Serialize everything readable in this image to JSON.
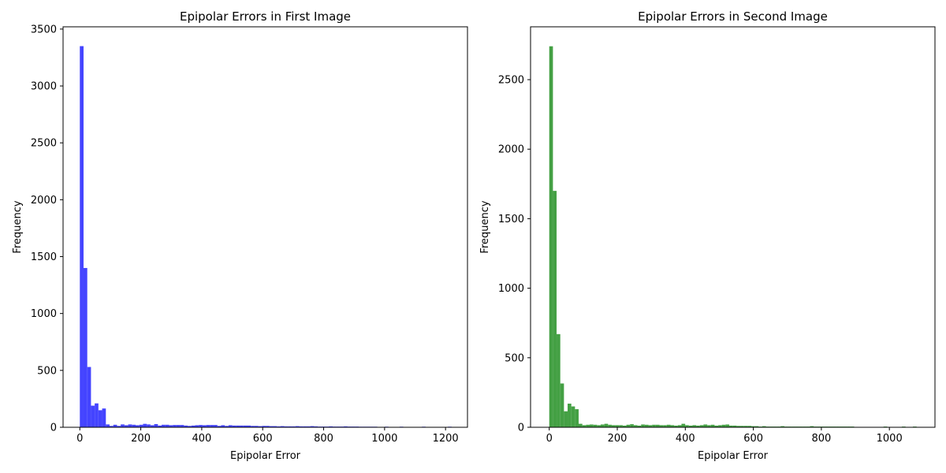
{
  "chart_data": [
    {
      "type": "bar",
      "title": "Epipolar Errors in First Image",
      "xlabel": "Epipolar Error",
      "ylabel": "Frequency",
      "xlim": [
        -55,
        1272
      ],
      "ylim": [
        0,
        3520
      ],
      "xticks": [
        0,
        200,
        400,
        600,
        800,
        1000,
        1200
      ],
      "xtick_labels": [
        "0",
        "200",
        "400",
        "600",
        "800",
        "1000",
        "1200"
      ],
      "yticks": [
        0,
        500,
        1000,
        1500,
        2000,
        2500,
        3000,
        3500
      ],
      "ytick_labels": [
        "0",
        "500",
        "1000",
        "1500",
        "2000",
        "2500",
        "3000",
        "3500"
      ],
      "color": "#4444ff",
      "bin_start": 0,
      "bin_width": 12.2,
      "values": [
        3350,
        1400,
        530,
        190,
        210,
        150,
        165,
        25,
        12,
        22,
        12,
        25,
        18,
        25,
        22,
        18,
        22,
        30,
        25,
        18,
        28,
        15,
        22,
        22,
        18,
        20,
        20,
        20,
        15,
        12,
        15,
        18,
        20,
        18,
        20,
        20,
        20,
        12,
        18,
        12,
        18,
        15,
        15,
        15,
        15,
        15,
        12,
        12,
        10,
        12,
        12,
        10,
        10,
        8,
        10,
        8,
        8,
        8,
        10,
        8,
        8,
        8,
        10,
        8,
        6,
        6,
        6,
        8,
        6,
        6,
        6,
        8,
        6,
        6,
        6,
        5,
        5,
        5,
        5,
        5,
        0,
        0,
        5,
        0,
        0,
        0,
        5,
        0,
        0,
        0,
        0,
        0,
        5,
        0,
        0,
        0,
        0,
        0,
        0,
        5
      ]
    },
    {
      "type": "bar",
      "title": "Epipolar Errors in Second Image",
      "xlabel": "Epipolar Error",
      "ylabel": "Frequency",
      "xlim": [
        -55,
        1134
      ],
      "ylim": [
        0,
        2880
      ],
      "xticks": [
        0,
        200,
        400,
        600,
        800,
        1000
      ],
      "xtick_labels": [
        "0",
        "200",
        "400",
        "600",
        "800",
        "1000"
      ],
      "yticks": [
        0,
        500,
        1000,
        1500,
        2000,
        2500
      ],
      "ytick_labels": [
        "0",
        "500",
        "1000",
        "1500",
        "2000",
        "2500"
      ],
      "color": "#44a044",
      "bin_start": 0,
      "bin_width": 10.8,
      "values": [
        2740,
        1700,
        670,
        315,
        115,
        170,
        150,
        130,
        25,
        15,
        18,
        20,
        18,
        15,
        20,
        25,
        18,
        15,
        15,
        15,
        12,
        18,
        22,
        15,
        12,
        20,
        18,
        15,
        18,
        18,
        15,
        15,
        18,
        15,
        12,
        15,
        25,
        15,
        12,
        15,
        12,
        15,
        20,
        15,
        18,
        12,
        15,
        18,
        20,
        12,
        12,
        10,
        10,
        10,
        10,
        8,
        8,
        5,
        8,
        5,
        5,
        5,
        5,
        8,
        5,
        5,
        5,
        5,
        5,
        5,
        5,
        8,
        5,
        5,
        5,
        5,
        5,
        5,
        5,
        5,
        5,
        5,
        5,
        0,
        0,
        0,
        0,
        0,
        0,
        0,
        0,
        5,
        0,
        0,
        0,
        0,
        5,
        0,
        0,
        5
      ]
    }
  ]
}
